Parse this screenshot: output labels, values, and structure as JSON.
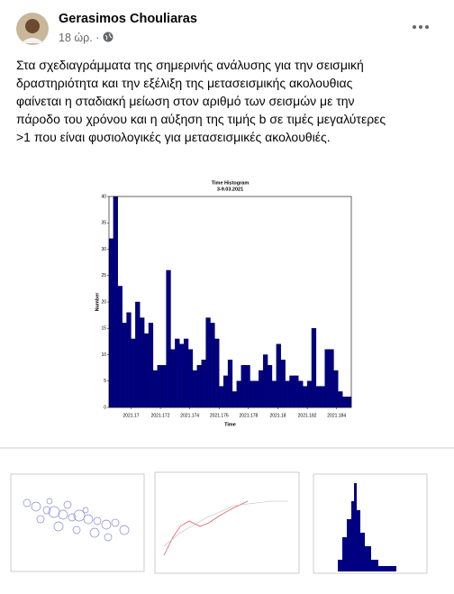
{
  "header": {
    "author": "Gerasimos Chouliaras",
    "time": "18 ώρ. · "
  },
  "post": {
    "lines": [
      "Στα σχεδιαγράμματα της σημερινής ανάλυσης για την σεισμική",
      "δραστηριότητα και την εξέλιξη της μετασεισμικής ακολουθιας",
      "φαίνεται η σταδιακή μείωση στον αριθμό των σεισμών με την",
      "πάροδο του χρόνου και η αύξηση της τιμής b σε τιμές μεγαλύτερες",
      ">1 που είναι φυσιολογικές για μετασεισμικές ακολουθιές."
    ]
  },
  "chart_data": {
    "type": "histogram",
    "title": "Time Histogram",
    "subtitle": "3-9.03.2021",
    "x_label": "Time",
    "y_label": "Number",
    "color": "#000080",
    "bins": [
      2021.1685,
      2021.1688,
      2021.1691,
      2021.1694,
      2021.1697,
      2021.17,
      2021.1703,
      2021.1706,
      2021.1709,
      2021.1712,
      2021.1715,
      2021.1718,
      2021.1721,
      2021.1724,
      2021.1727,
      2021.173,
      2021.1733,
      2021.1736,
      2021.1739,
      2021.1742,
      2021.1745,
      2021.1748,
      2021.1751,
      2021.1754,
      2021.1757,
      2021.176,
      2021.1763,
      2021.1766,
      2021.1769,
      2021.1772,
      2021.1775,
      2021.1778,
      2021.1781,
      2021.1784,
      2021.1787,
      2021.179,
      2021.1793,
      2021.1796,
      2021.1799,
      2021.1802,
      2021.1805,
      2021.1808,
      2021.1811,
      2021.1814,
      2021.1817,
      2021.182,
      2021.1823,
      2021.1826,
      2021.1829,
      2021.1832,
      2021.1835,
      2021.1838,
      2021.1841,
      2021.1844,
      2021.1847,
      2021.185
    ],
    "values": [
      32,
      40,
      23,
      16,
      18,
      13,
      20,
      17,
      14,
      16,
      7,
      8,
      8,
      26,
      11,
      13,
      12,
      13,
      11,
      7,
      8,
      9,
      17,
      16,
      13,
      4,
      6,
      9,
      3,
      5,
      8,
      8,
      5,
      5,
      7,
      10,
      8,
      5,
      12,
      9,
      5,
      6,
      6,
      5,
      4,
      5,
      15,
      4,
      4,
      11,
      11,
      7,
      3,
      2,
      2
    ],
    "xlim": [
      2021.1685,
      2021.185
    ],
    "ylim": [
      0,
      40
    ],
    "xticks": [
      2021.17,
      2021.172,
      2021.174,
      2021.176,
      2021.178,
      2021.18,
      2021.182,
      2021.184
    ],
    "yticks": [
      0,
      5,
      10,
      15,
      20,
      25,
      30,
      35,
      40
    ]
  }
}
